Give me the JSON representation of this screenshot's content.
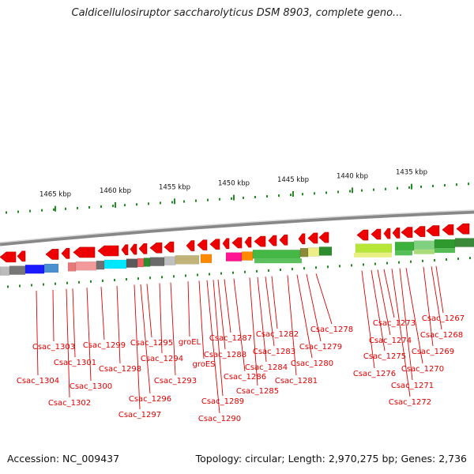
{
  "title": "Caldicellulosiruptor saccharolyticus DSM 8903, complete geno...",
  "footer": {
    "accession": "Accession: NC_009437",
    "topology": "Topology: circular; Length: 2,970,275 bp; Genes: 2,736"
  },
  "ruler_ticks": [
    "1465 kbp",
    "1460 kbp",
    "1455 kbp",
    "1450 kbp",
    "1445 kbp",
    "1440 kbp",
    "1435 kbp"
  ],
  "genes": [
    "Csac_1304",
    "Csac_1303",
    "Csac_1302",
    "Csac_1301",
    "Csac_1300",
    "Csac_1299",
    "Csac_1298",
    "Csac_1297",
    "Csac_1296",
    "Csac_1295",
    "Csac_1294",
    "Csac_1293",
    "groEL",
    "groES",
    "Csac_1290",
    "Csac_1289",
    "Csac_1288",
    "Csac_1287",
    "Csac_1286",
    "Csac_1285",
    "Csac_1284",
    "Csac_1283",
    "Csac_1282",
    "Csac_1281",
    "Csac_1280",
    "Csac_1279",
    "Csac_1278",
    "Csac_1276",
    "Csac_1275",
    "Csac_1274",
    "Csac_1273",
    "Csac_1272",
    "Csac_1271",
    "Csac_1270",
    "Csac_1269",
    "Csac_1268",
    "Csac_1267"
  ],
  "colors": {
    "gene": "#ee0000",
    "label": "#dd0000",
    "ruler": "#228b22",
    "backbone": "#888888"
  }
}
